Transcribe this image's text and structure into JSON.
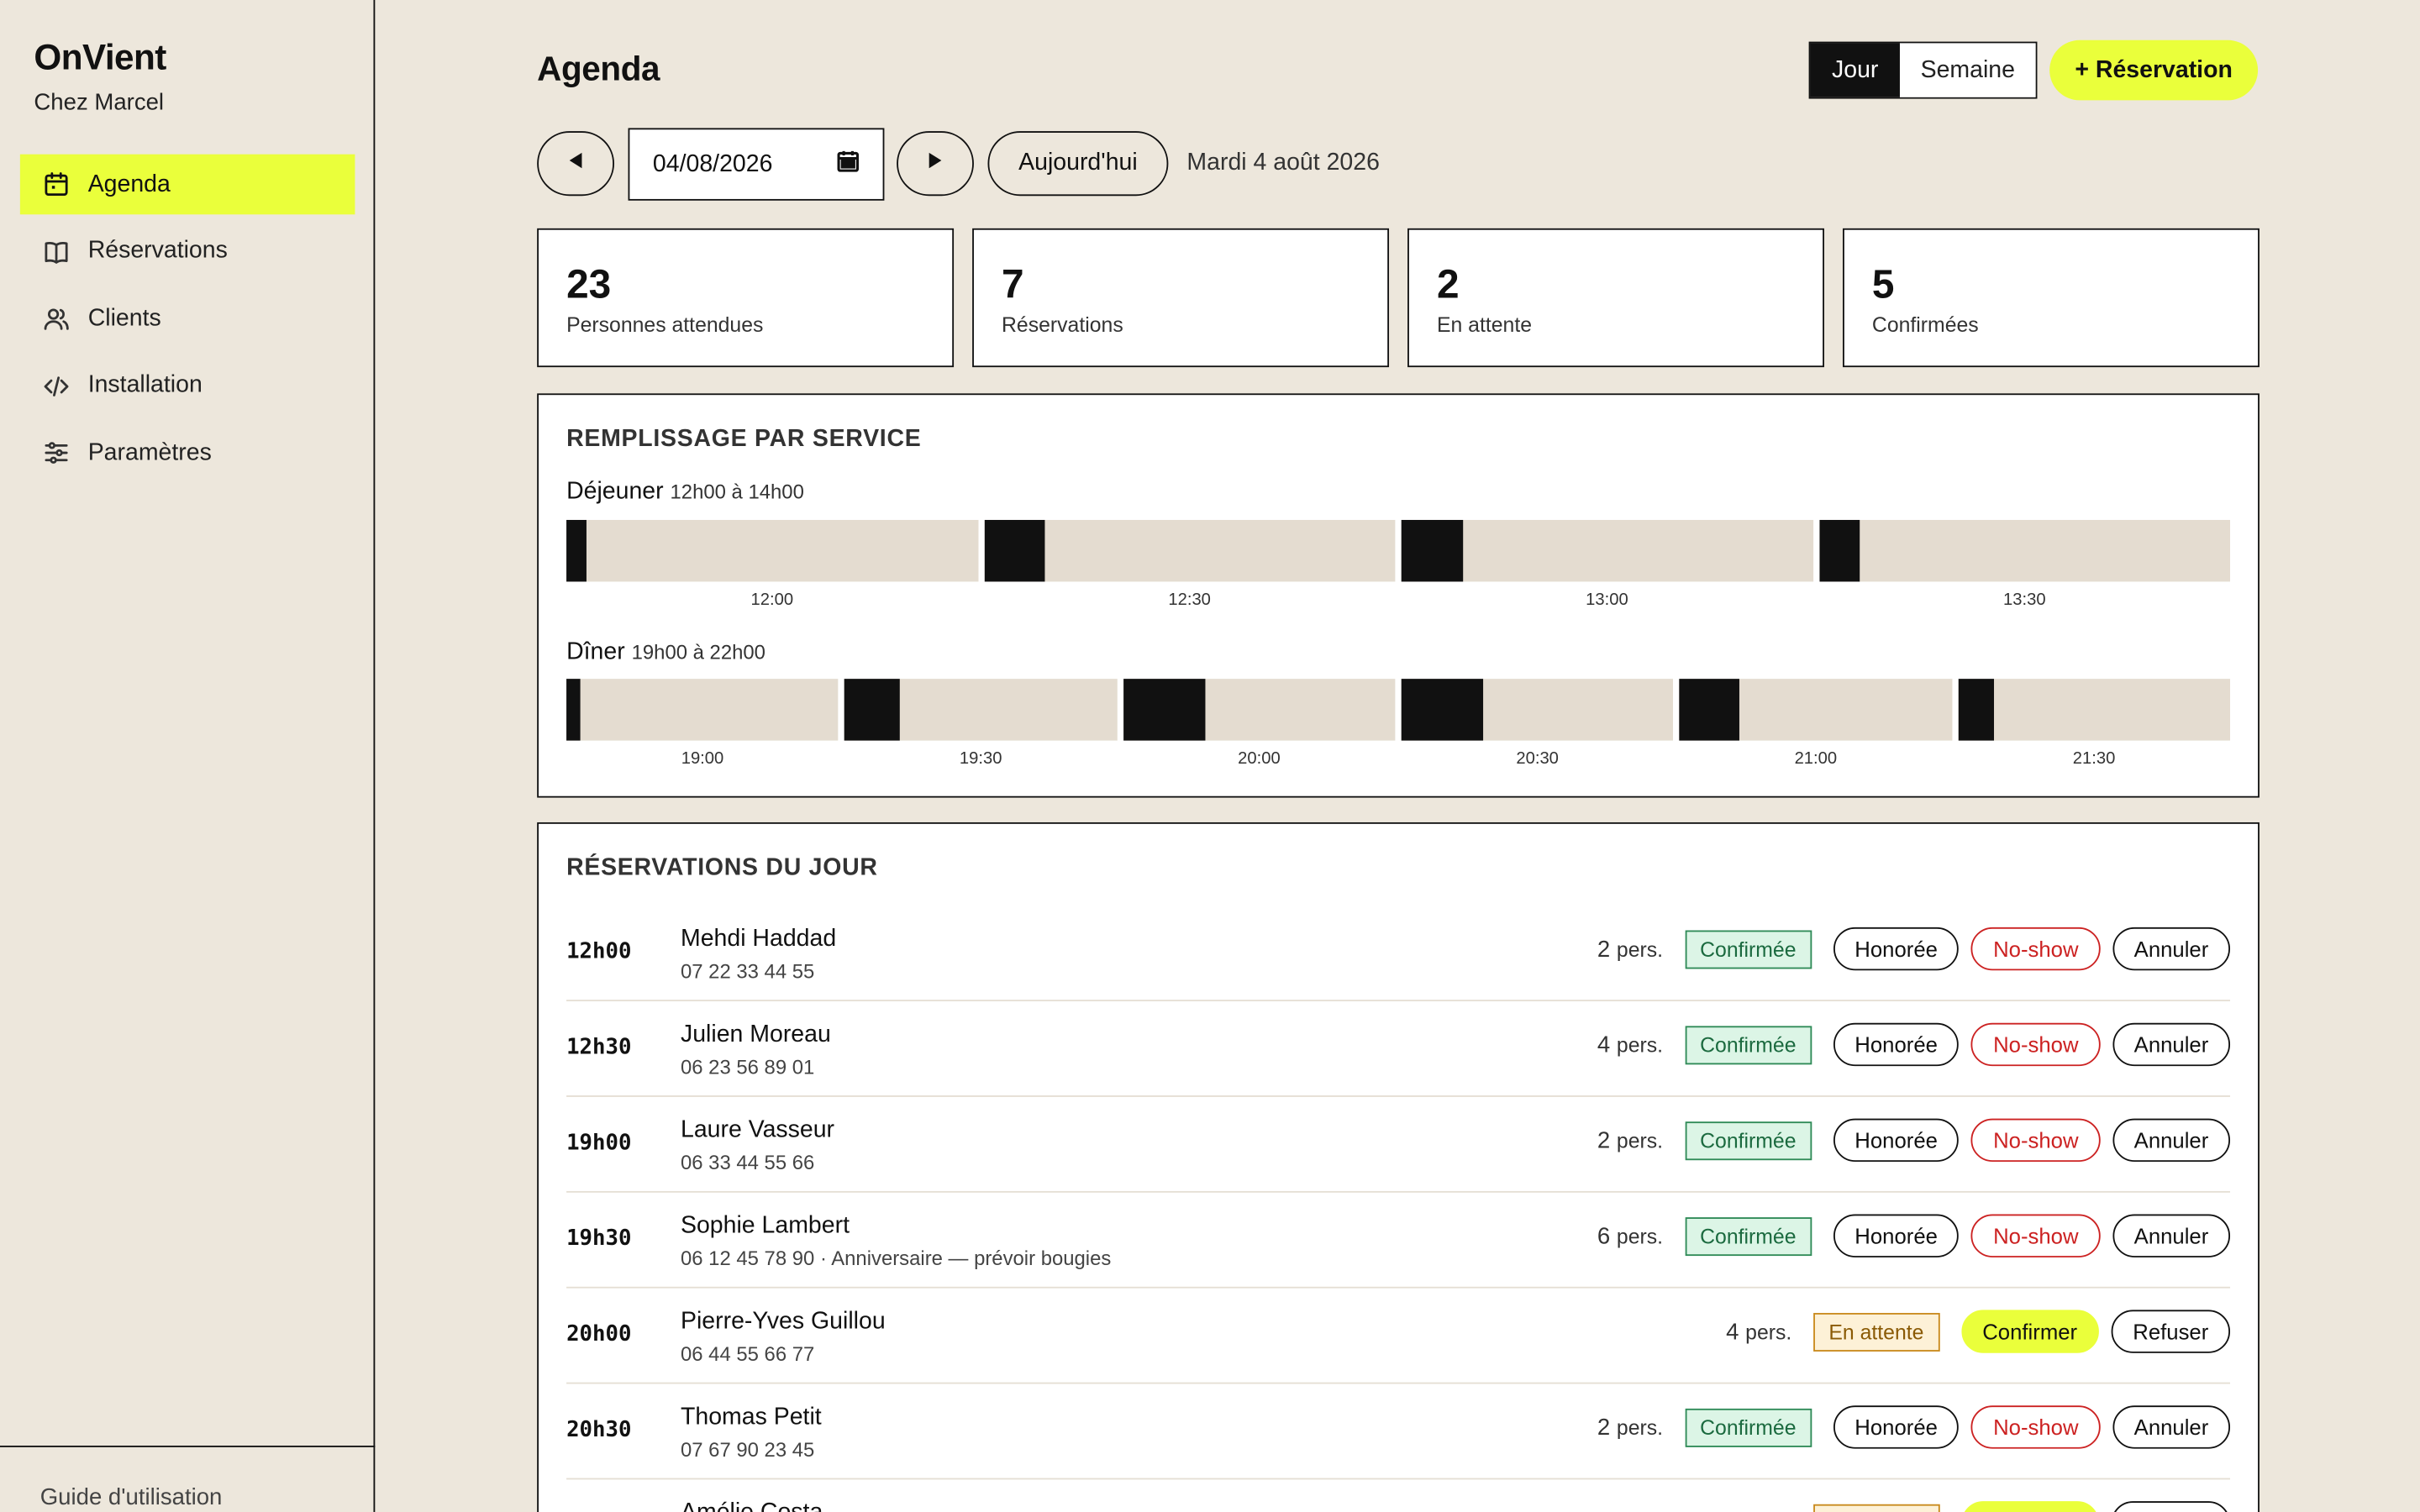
{
  "app": {
    "name": "OnVient",
    "restaurant": "Chez Marcel"
  },
  "sidebar": {
    "items": [
      {
        "label": "Agenda",
        "icon": "calendar-icon",
        "active": true
      },
      {
        "label": "Réservations",
        "icon": "book-icon",
        "active": false
      },
      {
        "label": "Clients",
        "icon": "users-icon",
        "active": false
      },
      {
        "label": "Installation",
        "icon": "code-icon",
        "active": false
      },
      {
        "label": "Paramètres",
        "icon": "sliders-icon",
        "active": false
      }
    ],
    "footer_link": "Guide d'utilisation"
  },
  "header": {
    "title": "Agenda",
    "view_tabs": [
      {
        "label": "Jour",
        "selected": true
      },
      {
        "label": "Semaine",
        "selected": false
      }
    ],
    "new_button": "+ Réservation"
  },
  "datebar": {
    "date_value": "04/08/2026",
    "today_label": "Aujourd'hui",
    "date_text": "Mardi 4 août 2026"
  },
  "stats": [
    {
      "value": "23",
      "label": "Personnes attendues"
    },
    {
      "value": "7",
      "label": "Réservations"
    },
    {
      "value": "2",
      "label": "En attente"
    },
    {
      "value": "5",
      "label": "Confirmées"
    }
  ],
  "fill": {
    "title": "REMPLISSAGE PAR SERVICE",
    "services": [
      {
        "name": "Déjeuner",
        "hours": "12h00 à 14h00",
        "slots": [
          {
            "time": "12:00",
            "fill": 0.05
          },
          {
            "time": "12:30",
            "fill": 0.15
          },
          {
            "time": "13:00",
            "fill": 0.15
          },
          {
            "time": "13:30",
            "fill": 0.1
          }
        ]
      },
      {
        "name": "Dîner",
        "hours": "19h00 à 22h00",
        "slots": [
          {
            "time": "19:00",
            "fill": 0.05
          },
          {
            "time": "19:30",
            "fill": 0.2
          },
          {
            "time": "20:00",
            "fill": 0.3
          },
          {
            "time": "20:30",
            "fill": 0.3
          },
          {
            "time": "21:00",
            "fill": 0.22
          },
          {
            "time": "21:30",
            "fill": 0.13
          }
        ]
      }
    ]
  },
  "reservations": {
    "title": "RÉSERVATIONS DU JOUR",
    "rows": [
      {
        "time": "12h00",
        "name": "Mehdi Haddad",
        "sub": "07 22 33 44 55",
        "count": "2",
        "unit": "pers.",
        "status": "Confirmée"
      },
      {
        "time": "12h30",
        "name": "Julien Moreau",
        "sub": "06 23 56 89 01",
        "count": "4",
        "unit": "pers.",
        "status": "Confirmée"
      },
      {
        "time": "19h00",
        "name": "Laure Vasseur",
        "sub": "06 33 44 55 66",
        "count": "2",
        "unit": "pers.",
        "status": "Confirmée"
      },
      {
        "time": "19h30",
        "name": "Sophie Lambert",
        "sub": "06 12 45 78 90 · Anniversaire — prévoir bougies",
        "count": "6",
        "unit": "pers.",
        "status": "Confirmée"
      },
      {
        "time": "20h00",
        "name": "Pierre-Yves Guillou",
        "sub": "06 44 55 66 77",
        "count": "4",
        "unit": "pers.",
        "status": "En attente"
      },
      {
        "time": "20h30",
        "name": "Thomas Petit",
        "sub": "07 67 90 23 45",
        "count": "2",
        "unit": "pers.",
        "status": "Confirmée"
      },
      {
        "time": "",
        "name": "Amélie Costa",
        "sub": "",
        "count": "",
        "unit": "",
        "status": "En attente"
      }
    ],
    "actions": {
      "honored": "Honorée",
      "noshow": "No-show",
      "cancel": "Annuler",
      "confirm": "Confirmer",
      "refuse": "Refuser"
    }
  },
  "colors": {
    "accent": "#eaff3b",
    "background": "#ede7dc",
    "ink": "#111111",
    "confirmed": "#1b6a3f",
    "pending": "#8a5a05",
    "noshow": "#cc2222"
  }
}
